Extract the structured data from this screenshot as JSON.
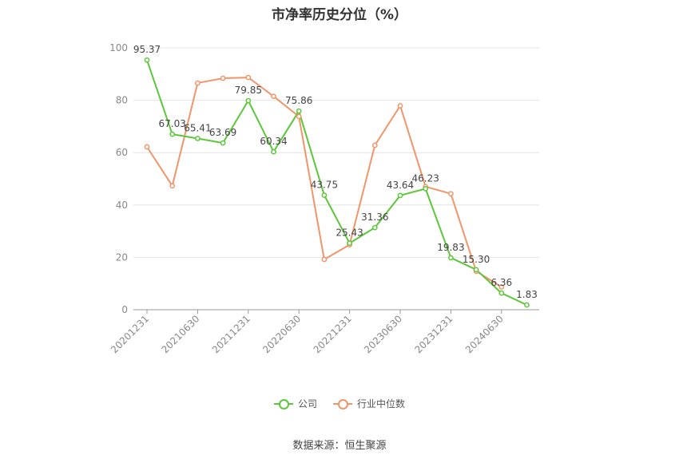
{
  "chart_data": {
    "type": "line",
    "title": "市净率历史分位（%）",
    "ylim": [
      0,
      100
    ],
    "yticks": [
      0,
      20,
      40,
      60,
      80,
      100
    ],
    "x": [
      "20201231",
      "20210331",
      "20210630",
      "20210930",
      "20211231",
      "20220331",
      "20220630",
      "20220930",
      "20221231",
      "20230331",
      "20230630",
      "20230930",
      "20231231",
      "20240331",
      "20240630",
      "20240930"
    ],
    "xtick_labels": [
      "20201231",
      "20210630",
      "20211231",
      "20220630",
      "20221231",
      "20230630",
      "20231231",
      "20240630"
    ],
    "series": [
      {
        "name": "公司",
        "color": "#5cc73a",
        "values": [
          95.37,
          67.03,
          65.41,
          63.69,
          79.85,
          60.34,
          75.86,
          43.75,
          25.43,
          31.36,
          43.64,
          46.23,
          19.83,
          15.3,
          6.36,
          1.83
        ],
        "labels": [
          "95.37",
          "67.03",
          "65.41",
          "63.69",
          "79.85",
          "60.34",
          "75.86",
          "43.75",
          "25.43",
          "31.36",
          "43.64",
          "46.23",
          "19.83",
          "15.30",
          "6.36",
          "1.83"
        ]
      },
      {
        "name": "行业中位数",
        "color": "#f0956a",
        "values": [
          62.2,
          47.3,
          86.6,
          88.4,
          88.7,
          81.5,
          73.8,
          19.2,
          24.8,
          62.8,
          77.9,
          47.0,
          44.3,
          14.7,
          8.7,
          null
        ]
      }
    ],
    "legend_position": "bottom",
    "grid": true
  },
  "source": "数据来源：恒生聚源"
}
